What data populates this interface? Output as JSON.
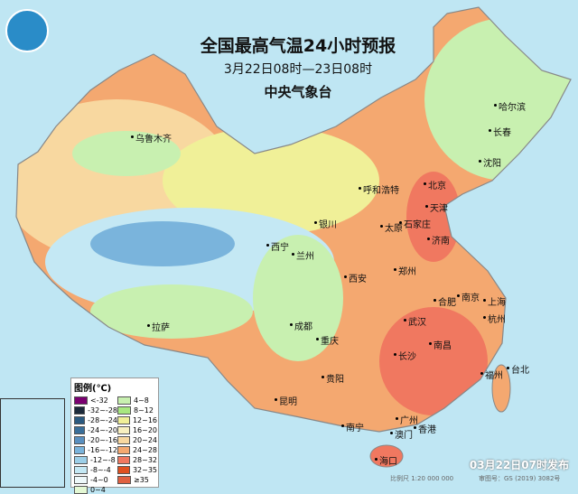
{
  "title": "全国最高气温24小时预报",
  "period": "3月22日08时—23日08时",
  "agency": "中央气象台",
  "logo": "cma-logo-icon",
  "legend": {
    "title": "图例(℃)",
    "items": [
      {
        "label": "<-32",
        "color": "#7a0070"
      },
      {
        "label": "-32~-28",
        "color": "#1c2a3a"
      },
      {
        "label": "-28~-24",
        "color": "#2b5a80"
      },
      {
        "label": "-24~-20",
        "color": "#3a6f9a"
      },
      {
        "label": "-20~-16",
        "color": "#5a90c0"
      },
      {
        "label": "-16~-12",
        "color": "#7ab4dc"
      },
      {
        "label": "-12~-8",
        "color": "#9ccfe8"
      },
      {
        "label": "-8~-4",
        "color": "#c4e8f4"
      },
      {
        "label": "-4~0",
        "color": "#eef8fa"
      },
      {
        "label": "0~4",
        "color": "#e4f8d4"
      },
      {
        "label": "4~8",
        "color": "#c8f0b0"
      },
      {
        "label": "8~12",
        "color": "#a8e880"
      },
      {
        "label": "12~16",
        "color": "#f0f098"
      },
      {
        "label": "16~20",
        "color": "#f8f0c0"
      },
      {
        "label": "20~24",
        "color": "#f8d8a0"
      },
      {
        "label": "24~28",
        "color": "#f4a870"
      },
      {
        "label": "28~32",
        "color": "#f07860"
      },
      {
        "label": "32~35",
        "color": "#e05020"
      },
      {
        "label": "≥35",
        "color": "#e06040"
      }
    ]
  },
  "cities": [
    {
      "name": "乌鲁木齐"
    },
    {
      "name": "哈尔滨"
    },
    {
      "name": "长春"
    },
    {
      "name": "沈阳"
    },
    {
      "name": "呼和浩特"
    },
    {
      "name": "北京"
    },
    {
      "name": "天津"
    },
    {
      "name": "银川"
    },
    {
      "name": "太原"
    },
    {
      "name": "石家庄"
    },
    {
      "name": "济南"
    },
    {
      "name": "西宁"
    },
    {
      "name": "兰州"
    },
    {
      "name": "郑州"
    },
    {
      "name": "西安"
    },
    {
      "name": "南京"
    },
    {
      "name": "合肥"
    },
    {
      "name": "上海"
    },
    {
      "name": "成都"
    },
    {
      "name": "武汉"
    },
    {
      "name": "杭州"
    },
    {
      "name": "拉萨"
    },
    {
      "name": "重庆"
    },
    {
      "name": "南昌"
    },
    {
      "name": "长沙"
    },
    {
      "name": "福州"
    },
    {
      "name": "台北"
    },
    {
      "name": "贵阳"
    },
    {
      "name": "昆明"
    },
    {
      "name": "南宁"
    },
    {
      "name": "广州"
    },
    {
      "name": "香港"
    },
    {
      "name": "澳门"
    },
    {
      "name": "海口"
    }
  ],
  "publish_time": "03月22日07时发布",
  "scale": "比例尺 1:20 000 000",
  "review_no": "审图号：GS (2019) 3082号"
}
